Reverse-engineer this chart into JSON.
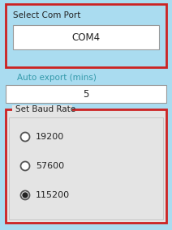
{
  "bg_color": "#aadcf0",
  "panel_bg": "#e4e4e4",
  "white": "#ffffff",
  "red_border": "#cc2222",
  "dark_text": "#222222",
  "teal_text": "#3399aa",
  "select_com_label": "Select Com Port",
  "com_value": "COM4",
  "auto_export_label": "Auto export (mins)",
  "auto_export_value": "5",
  "baud_group_label": "Set Baud Rate",
  "baud_options": [
    "19200",
    "57600",
    "115200"
  ],
  "baud_selected": 2,
  "figw": 2.12,
  "figh": 2.84,
  "dpi": 100
}
